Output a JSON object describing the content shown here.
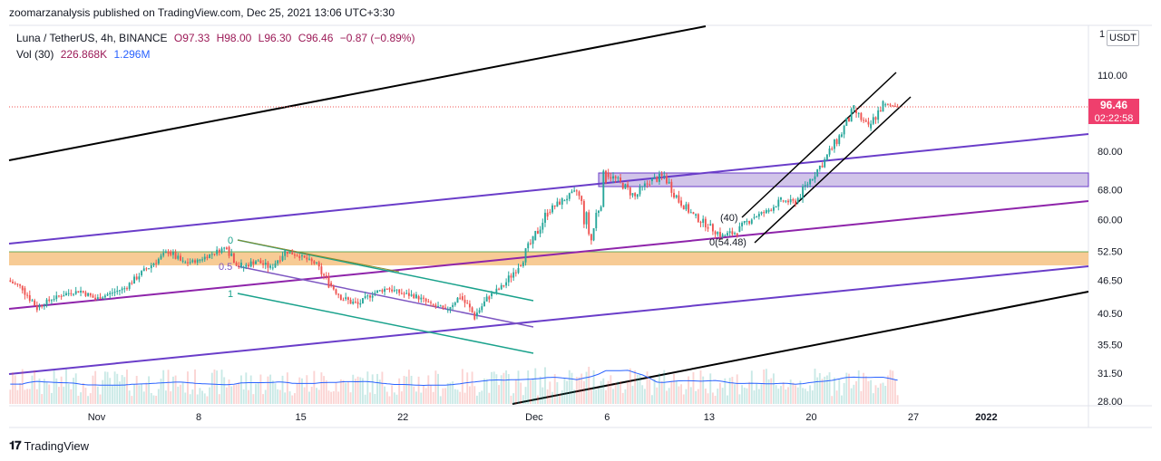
{
  "header": {
    "published": "zoomarzanalysis published on TradingView.com, Dec 25, 2021 13:06 UTC+3:30"
  },
  "legend": {
    "symbol": "Luna / TetherUS, 4h, BINANCE",
    "open": "O97.33",
    "high": "H98.00",
    "low": "L96.30",
    "close": "C96.46",
    "change": "−0.87 (−0.89%)",
    "vol_label": "Vol (30)",
    "vol_value": "226.868K",
    "vol_ma": "1.296M"
  },
  "currency": "USDT",
  "axis_top_fragment": "1",
  "last_price": {
    "value": "96.46",
    "countdown": "02:22:58"
  },
  "footer": {
    "brand": "TradingView"
  },
  "fib_labels": {
    "a": "0",
    "b": "0.5",
    "c": "1"
  },
  "fib_labels2": {
    "a": "(40)",
    "b": "0(54.48)"
  },
  "colors": {
    "up": "#26a69a",
    "down": "#ef5350",
    "orange_zone": "#f6c58a",
    "purple_zone": "#d1c4e9",
    "purple_line": "#6a3dc9",
    "magenta_line": "#8e24aa",
    "teal_line": "#1aa28c",
    "black_line": "#000000"
  },
  "chart_data": {
    "type": "candlestick",
    "title": "Luna / TetherUS, 4h, BINANCE",
    "y_scale": "log",
    "y_ticks": [
      "110.00",
      "80.00",
      "68.00",
      "60.00",
      "52.50",
      "46.50",
      "40.50",
      "35.50",
      "31.50",
      "28.00"
    ],
    "y_tick_values": [
      110,
      80,
      68,
      60,
      52.5,
      46.5,
      40.5,
      35.5,
      31.5,
      28
    ],
    "ylim": [
      27.5,
      125
    ],
    "x_ticks": [
      "Nov",
      "8",
      "15",
      "22",
      "Dec",
      "6",
      "13",
      "20",
      "27",
      "2022"
    ],
    "x_tick_dates": [
      "2021-11-01",
      "2021-11-08",
      "2021-11-15",
      "2021-11-22",
      "2021-12-01",
      "2021-12-06",
      "2021-12-13",
      "2021-12-20",
      "2021-12-27",
      "2022-01-01"
    ],
    "xlim": [
      "2021-10-26",
      "2022-01-08"
    ],
    "daily_ohlc": [
      [
        "2021-10-26",
        46.5,
        47.5,
        44,
        45
      ],
      [
        "2021-10-27",
        45,
        45.5,
        40.5,
        41.5
      ],
      [
        "2021-10-28",
        41.5,
        43.5,
        41,
        43
      ],
      [
        "2021-10-29",
        43,
        44.5,
        42.5,
        44
      ],
      [
        "2021-10-30",
        44,
        45.5,
        43.5,
        44.5
      ],
      [
        "2021-10-31",
        44.5,
        45.5,
        42.5,
        43
      ],
      [
        "2021-11-01",
        43,
        44.5,
        42.5,
        44
      ],
      [
        "2021-11-02",
        44,
        45.5,
        43.5,
        45
      ],
      [
        "2021-11-03",
        45,
        48,
        44.5,
        47.5
      ],
      [
        "2021-11-04",
        47.5,
        51,
        47,
        50
      ],
      [
        "2021-11-05",
        50,
        53,
        49,
        52.5
      ],
      [
        "2021-11-06",
        52.5,
        53,
        48.5,
        50
      ],
      [
        "2021-11-07",
        50,
        51,
        49,
        50.5
      ],
      [
        "2021-11-08",
        50.5,
        52.5,
        50,
        52
      ],
      [
        "2021-11-09",
        52,
        54.5,
        51.5,
        53.5
      ],
      [
        "2021-11-10",
        53.5,
        55,
        47,
        49
      ],
      [
        "2021-11-11",
        49,
        51.5,
        48,
        50.5
      ],
      [
        "2021-11-12",
        50.5,
        51.5,
        48,
        49
      ],
      [
        "2021-11-13",
        49,
        53,
        48.5,
        52.5
      ],
      [
        "2021-11-14",
        52.5,
        53,
        50.5,
        51.5
      ],
      [
        "2021-11-15",
        51.5,
        52,
        49.5,
        50
      ],
      [
        "2021-11-16",
        50,
        50.5,
        45,
        46
      ],
      [
        "2021-11-17",
        46,
        46.5,
        42,
        43
      ],
      [
        "2021-11-18",
        43,
        45,
        41,
        42
      ],
      [
        "2021-11-19",
        42,
        44.5,
        41.5,
        44
      ],
      [
        "2021-11-20",
        44,
        46,
        43.5,
        45
      ],
      [
        "2021-11-21",
        45,
        46,
        43.5,
        44
      ],
      [
        "2021-11-22",
        44,
        45.5,
        43,
        43.5
      ],
      [
        "2021-11-23",
        43.5,
        44,
        41.5,
        42
      ],
      [
        "2021-11-24",
        42,
        43,
        40,
        41
      ],
      [
        "2021-11-25",
        41,
        44,
        40.5,
        43.5
      ],
      [
        "2021-11-26",
        43.5,
        44.5,
        39,
        40
      ],
      [
        "2021-11-27",
        40,
        44,
        39.5,
        43.5
      ],
      [
        "2021-11-28",
        43.5,
        46,
        43,
        45.5
      ],
      [
        "2021-11-29",
        45.5,
        50,
        45,
        49.5
      ],
      [
        "2021-11-30",
        49.5,
        56,
        49,
        55
      ],
      [
        "2021-12-01",
        55,
        63,
        54.5,
        62
      ],
      [
        "2021-12-02",
        62,
        66,
        61,
        65
      ],
      [
        "2021-12-03",
        65,
        69,
        64,
        67.5
      ],
      [
        "2021-12-04",
        67.5,
        69,
        50,
        55
      ],
      [
        "2021-12-05",
        55,
        76,
        54,
        73
      ],
      [
        "2021-12-06",
        73,
        75,
        68,
        70
      ],
      [
        "2021-12-07",
        70,
        72,
        65,
        66
      ],
      [
        "2021-12-08",
        66,
        72,
        64,
        70.5
      ],
      [
        "2021-12-09",
        70.5,
        75,
        68,
        72
      ],
      [
        "2021-12-10",
        72,
        73,
        64,
        65
      ],
      [
        "2021-12-11",
        65,
        66,
        60,
        61
      ],
      [
        "2021-12-12",
        61,
        62,
        57,
        58.5
      ],
      [
        "2021-12-13",
        58.5,
        60,
        55,
        56
      ],
      [
        "2021-12-14",
        56,
        58,
        52.5,
        57
      ],
      [
        "2021-12-15",
        57,
        62,
        56,
        60.5
      ],
      [
        "2021-12-16",
        60.5,
        63,
        59,
        62
      ],
      [
        "2021-12-17",
        62,
        66,
        61,
        65
      ],
      [
        "2021-12-18",
        65,
        67,
        63,
        64.5
      ],
      [
        "2021-12-19",
        64.5,
        72,
        64,
        71
      ],
      [
        "2021-12-20",
        71,
        78,
        70,
        77
      ],
      [
        "2021-12-21",
        77,
        86,
        76,
        85
      ],
      [
        "2021-12-22",
        85,
        97,
        84,
        95
      ],
      [
        "2021-12-23",
        95,
        96,
        86,
        88
      ],
      [
        "2021-12-24",
        88,
        99,
        87,
        97.3
      ],
      [
        "2021-12-25",
        97.3,
        98,
        96.3,
        96.46
      ]
    ],
    "volume_ma_level": 0.45
  }
}
